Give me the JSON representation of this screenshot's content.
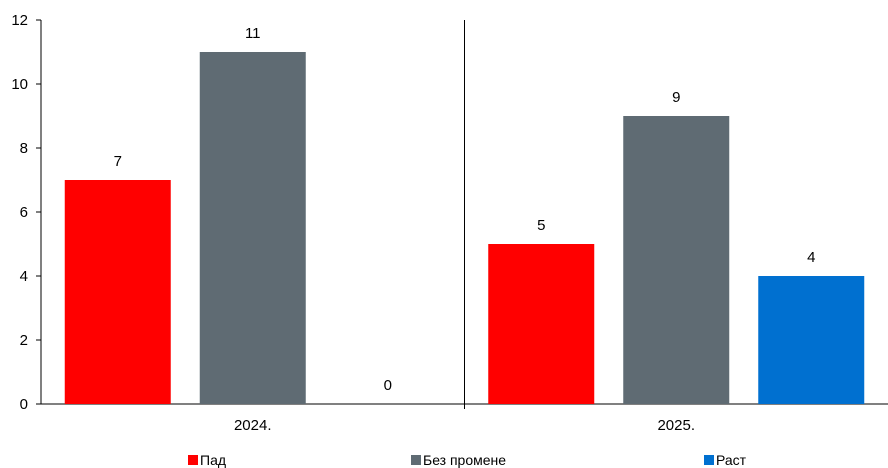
{
  "chart_data": {
    "type": "bar",
    "categories": [
      "2024.",
      "2025."
    ],
    "series": [
      {
        "name": "Пад",
        "color": "#ff0000",
        "values": [
          7,
          5
        ]
      },
      {
        "name": "Без промене",
        "color": "#5f6b73",
        "values": [
          11,
          9
        ]
      },
      {
        "name": "Раст",
        "color": "#0070d0",
        "values": [
          0,
          4
        ]
      }
    ],
    "ylim": [
      0,
      12
    ],
    "yticks": [
      0,
      2,
      4,
      6,
      8,
      10,
      12
    ],
    "grid": false,
    "legend_position": "bottom"
  }
}
